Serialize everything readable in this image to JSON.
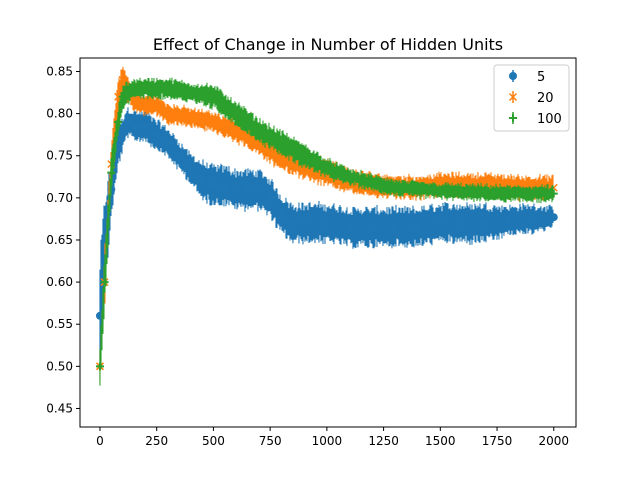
{
  "chart_data": {
    "type": "line",
    "title": "Effect of Change in Number of Hidden Units",
    "xlabel": "",
    "ylabel": "",
    "xlim": [
      -88,
      2098
    ],
    "ylim": [
      0.428,
      0.866
    ],
    "x_ticks": [
      0,
      250,
      500,
      750,
      1000,
      1250,
      1500,
      1750,
      2000
    ],
    "x_tick_labels": [
      "0",
      "250",
      "500",
      "750",
      "1000",
      "1250",
      "1500",
      "1750",
      "2000"
    ],
    "y_ticks": [
      0.45,
      0.5,
      0.55,
      0.6,
      0.65,
      0.7,
      0.75,
      0.8,
      0.85
    ],
    "y_tick_labels": [
      "0.45",
      "0.50",
      "0.55",
      "0.60",
      "0.65",
      "0.70",
      "0.75",
      "0.80",
      "0.85"
    ],
    "grid": false,
    "legend_position": "top-right",
    "series": [
      {
        "name": "5",
        "color": "#1f77b4",
        "marker": "circle",
        "x": [
          0,
          20,
          50,
          80,
          120,
          160,
          200,
          250,
          300,
          350,
          400,
          450,
          500,
          550,
          600,
          650,
          700,
          750,
          800,
          850,
          900,
          1000,
          1100,
          1200,
          1300,
          1400,
          1500,
          1600,
          1700,
          1800,
          1900,
          2000
        ],
        "y": [
          0.56,
          0.64,
          0.71,
          0.76,
          0.79,
          0.785,
          0.785,
          0.775,
          0.765,
          0.75,
          0.735,
          0.72,
          0.715,
          0.715,
          0.71,
          0.71,
          0.71,
          0.7,
          0.68,
          0.67,
          0.67,
          0.67,
          0.665,
          0.665,
          0.665,
          0.665,
          0.67,
          0.67,
          0.67,
          0.673,
          0.675,
          0.677
        ],
        "err": [
          0.06,
          0.05,
          0.03,
          0.02,
          0.015,
          0.015,
          0.015,
          0.015,
          0.015,
          0.015,
          0.015,
          0.02,
          0.02,
          0.02,
          0.02,
          0.02,
          0.02,
          0.02,
          0.02,
          0.02,
          0.02,
          0.02,
          0.02,
          0.02,
          0.02,
          0.02,
          0.02,
          0.02,
          0.02,
          0.015,
          0.015,
          0.01
        ]
      },
      {
        "name": "20",
        "color": "#ff7f0e",
        "marker": "x",
        "x": [
          0,
          20,
          50,
          80,
          100,
          150,
          200,
          250,
          300,
          400,
          500,
          600,
          700,
          800,
          900,
          1000,
          1100,
          1200,
          1300,
          1400,
          1500,
          1600,
          1700,
          1800,
          1900,
          2000
        ],
        "y": [
          0.5,
          0.6,
          0.74,
          0.82,
          0.84,
          0.815,
          0.81,
          0.81,
          0.8,
          0.795,
          0.79,
          0.78,
          0.765,
          0.75,
          0.74,
          0.73,
          0.72,
          0.715,
          0.713,
          0.712,
          0.715,
          0.715,
          0.715,
          0.713,
          0.712,
          0.712
        ],
        "err": [
          0.02,
          0.03,
          0.02,
          0.02,
          0.015,
          0.01,
          0.01,
          0.01,
          0.01,
          0.01,
          0.01,
          0.012,
          0.012,
          0.015,
          0.015,
          0.015,
          0.012,
          0.012,
          0.012,
          0.012,
          0.012,
          0.012,
          0.012,
          0.012,
          0.012,
          0.012
        ]
      },
      {
        "name": "100",
        "color": "#2ca02c",
        "marker": "plus",
        "x": [
          0,
          20,
          50,
          80,
          100,
          150,
          200,
          300,
          400,
          500,
          600,
          700,
          800,
          900,
          1000,
          1100,
          1200,
          1300,
          1400,
          1500,
          1600,
          1700,
          1800,
          1900,
          2000
        ],
        "y": [
          0.5,
          0.6,
          0.73,
          0.79,
          0.82,
          0.83,
          0.83,
          0.83,
          0.825,
          0.82,
          0.8,
          0.78,
          0.765,
          0.75,
          0.735,
          0.725,
          0.718,
          0.712,
          0.71,
          0.708,
          0.707,
          0.706,
          0.705,
          0.705,
          0.705
        ],
        "err": [
          0.02,
          0.03,
          0.02,
          0.015,
          0.012,
          0.01,
          0.01,
          0.01,
          0.01,
          0.012,
          0.012,
          0.012,
          0.012,
          0.012,
          0.01,
          0.008,
          0.008,
          0.008,
          0.008,
          0.008,
          0.008,
          0.008,
          0.008,
          0.008,
          0.008
        ]
      }
    ]
  }
}
